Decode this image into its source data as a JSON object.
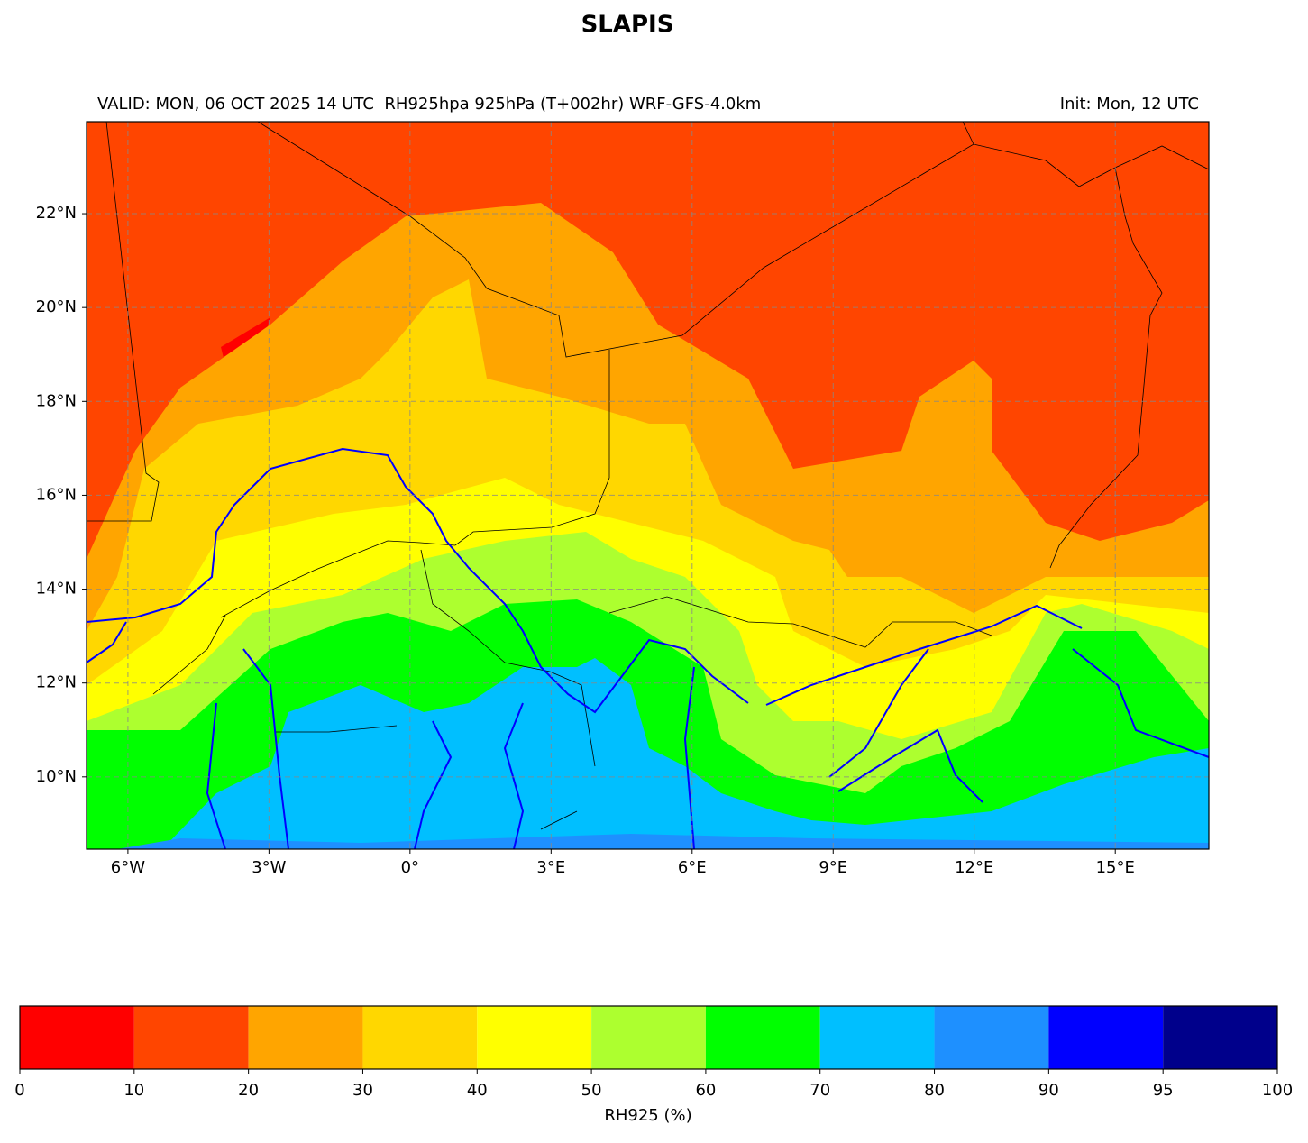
{
  "title": "SLAPIS",
  "subtitle_left": "VALID: MON, 06 OCT 2025 14 UTC  RH925hpa 925hPa (T+002hr) WRF-GFS-4.0km",
  "subtitle_right": "Init: Mon, 12 UTC",
  "map": {
    "xlim": [
      -6.88,
      16.99
    ],
    "ylim": [
      8.46,
      23.96
    ],
    "grid": true,
    "xticks": [
      {
        "value": -6,
        "label": "6°W"
      },
      {
        "value": -3,
        "label": "3°W"
      },
      {
        "value": 0,
        "label": "0°"
      },
      {
        "value": 3,
        "label": "3°E"
      },
      {
        "value": 6,
        "label": "6°E"
      },
      {
        "value": 9,
        "label": "9°E"
      },
      {
        "value": 12,
        "label": "12°E"
      },
      {
        "value": 15,
        "label": "15°E"
      }
    ],
    "yticks": [
      {
        "value": 10,
        "label": "10°N"
      },
      {
        "value": 12,
        "label": "12°N"
      },
      {
        "value": 14,
        "label": "14°N"
      },
      {
        "value": 16,
        "label": "16°N"
      },
      {
        "value": 18,
        "label": "18°N"
      },
      {
        "value": 20,
        "label": "20°N"
      },
      {
        "value": 22,
        "label": "22°N"
      }
    ]
  },
  "colorbar": {
    "label": "RH925 (%)",
    "boundaries": [
      0,
      10,
      20,
      30,
      40,
      50,
      60,
      70,
      80,
      90,
      95,
      100
    ],
    "colors": [
      "#ff0000",
      "#ff4500",
      "#ffa500",
      "#ffd700",
      "#ffff00",
      "#adff2f",
      "#00ff00",
      "#00bfff",
      "#1e90ff",
      "#0000ff",
      "#00008b"
    ]
  }
}
